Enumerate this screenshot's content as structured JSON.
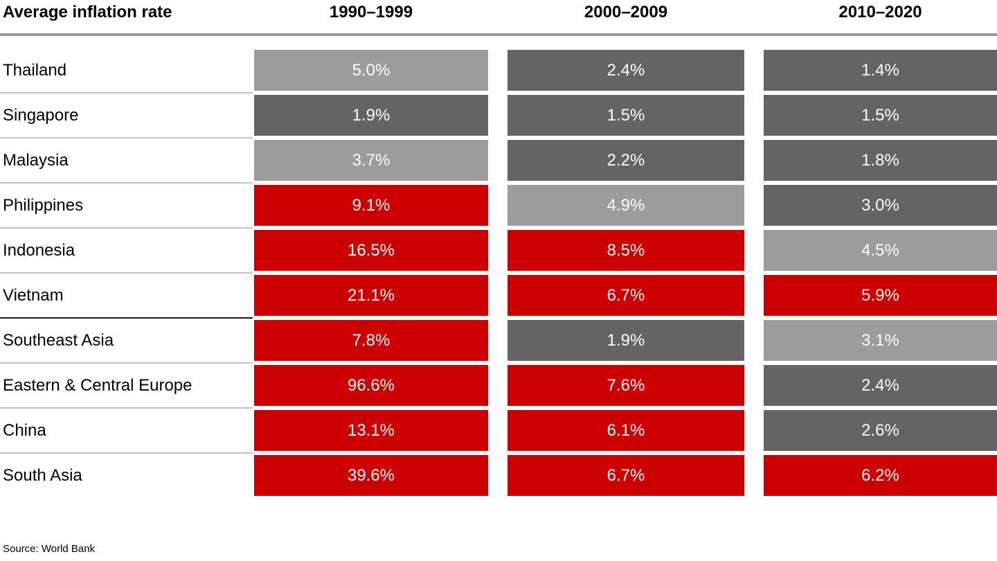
{
  "header": {
    "title": "Average inflation rate",
    "columns": [
      "1990–1999",
      "2000–2009",
      "2010–2020"
    ]
  },
  "source": "Source: World Bank",
  "colors": {
    "red": "#cc0000",
    "dark_gray": "#646464",
    "light_gray": "#9c9c9c",
    "rule_gray": "#9b9b9b"
  },
  "legend_semantics": {
    "red": "high inflation",
    "light_gray": "medium inflation",
    "dark_gray": "low inflation"
  },
  "chart_data": {
    "type": "heatmap",
    "title": "Average inflation rate",
    "categories": [
      "1990–1999",
      "2000–2009",
      "2010–2020"
    ],
    "unit": "%",
    "rows": [
      {
        "label": "Thailand",
        "values": [
          5.0,
          2.4,
          1.4
        ],
        "display": [
          "5.0%",
          "2.4%",
          "1.4%"
        ],
        "levels": [
          "light",
          "dark",
          "dark"
        ]
      },
      {
        "label": "Singapore",
        "values": [
          1.9,
          1.5,
          1.5
        ],
        "display": [
          "1.9%",
          "1.5%",
          "1.5%"
        ],
        "levels": [
          "dark",
          "dark",
          "dark"
        ]
      },
      {
        "label": "Malaysia",
        "values": [
          3.7,
          2.2,
          1.8
        ],
        "display": [
          "3.7%",
          "2.2%",
          "1.8%"
        ],
        "levels": [
          "light",
          "dark",
          "dark"
        ]
      },
      {
        "label": "Philippines",
        "values": [
          9.1,
          4.9,
          3.0
        ],
        "display": [
          "9.1%",
          "4.9%",
          "3.0%"
        ],
        "levels": [
          "red",
          "light",
          "dark"
        ]
      },
      {
        "label": "Indonesia",
        "values": [
          16.5,
          8.5,
          4.5
        ],
        "display": [
          "16.5%",
          "8.5%",
          "4.5%"
        ],
        "levels": [
          "red",
          "red",
          "light"
        ]
      },
      {
        "label": "Vietnam",
        "values": [
          21.1,
          6.7,
          5.9
        ],
        "display": [
          "21.1%",
          "6.7%",
          "5.9%"
        ],
        "levels": [
          "red",
          "red",
          "red"
        ],
        "divider_after": true
      },
      {
        "label": "Southeast Asia",
        "values": [
          7.8,
          1.9,
          3.1
        ],
        "display": [
          "7.8%",
          "1.9%",
          "3.1%"
        ],
        "levels": [
          "red",
          "dark",
          "light"
        ]
      },
      {
        "label": "Eastern & Central Europe",
        "values": [
          96.6,
          7.6,
          2.4
        ],
        "display": [
          "96.6%",
          "7.6%",
          "2.4%"
        ],
        "levels": [
          "red",
          "red",
          "dark"
        ]
      },
      {
        "label": "China",
        "values": [
          13.1,
          6.1,
          2.6
        ],
        "display": [
          "13.1%",
          "6.1%",
          "2.6%"
        ],
        "levels": [
          "red",
          "red",
          "dark"
        ]
      },
      {
        "label": "South Asia",
        "values": [
          39.6,
          6.7,
          6.2
        ],
        "display": [
          "39.6%",
          "6.7%",
          "6.2%"
        ],
        "levels": [
          "red",
          "red",
          "red"
        ]
      }
    ]
  }
}
